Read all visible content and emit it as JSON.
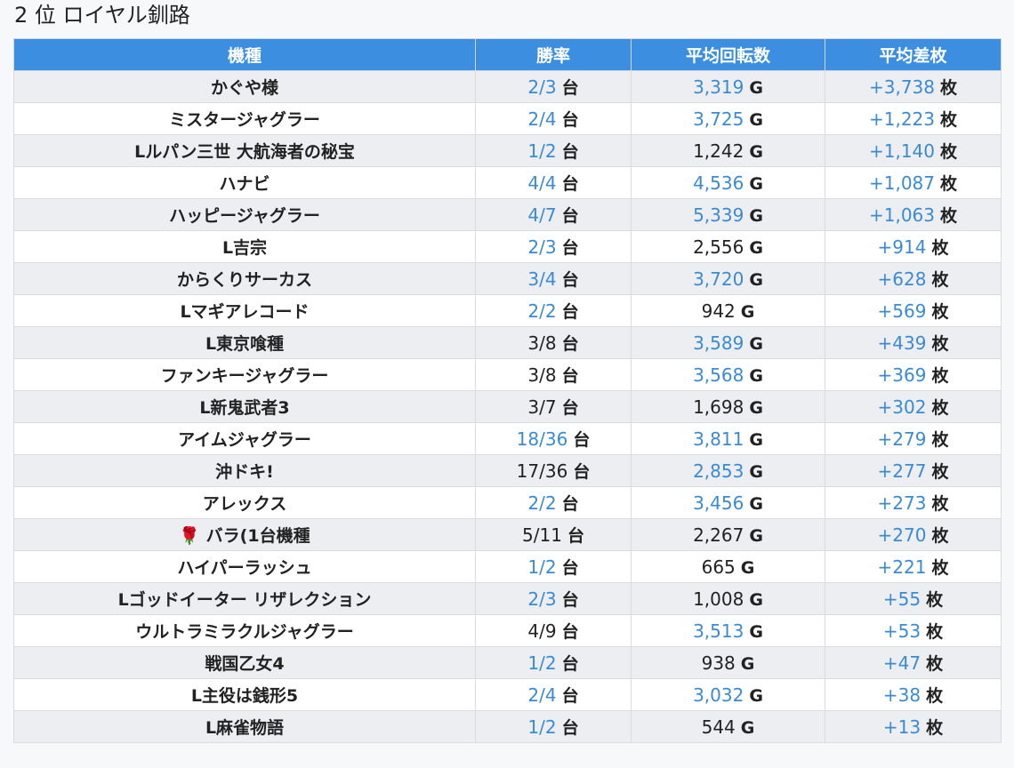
{
  "title": "2 位 ロイヤル釧路",
  "table": {
    "headers": [
      "機種",
      "勝率",
      "平均回転数",
      "平均差枚"
    ],
    "rows": [
      {
        "name": "かぐや様",
        "win": "2/3",
        "win_blue": true,
        "unit_win": "台",
        "spins": "3,319",
        "spins_blue": true,
        "unit_spins": "G",
        "diff": "+3,738",
        "diff_blue": true,
        "unit_diff": "枚"
      },
      {
        "name": "ミスタージャグラー",
        "win": "2/4",
        "win_blue": true,
        "unit_win": "台",
        "spins": "3,725",
        "spins_blue": true,
        "unit_spins": "G",
        "diff": "+1,223",
        "diff_blue": true,
        "unit_diff": "枚"
      },
      {
        "name": "Lルパン三世 大航海者の秘宝",
        "win": "1/2",
        "win_blue": true,
        "unit_win": "台",
        "spins": "1,242",
        "spins_blue": false,
        "unit_spins": "G",
        "diff": "+1,140",
        "diff_blue": true,
        "unit_diff": "枚"
      },
      {
        "name": "ハナビ",
        "win": "4/4",
        "win_blue": true,
        "unit_win": "台",
        "spins": "4,536",
        "spins_blue": true,
        "unit_spins": "G",
        "diff": "+1,087",
        "diff_blue": true,
        "unit_diff": "枚"
      },
      {
        "name": "ハッピージャグラー",
        "win": "4/7",
        "win_blue": true,
        "unit_win": "台",
        "spins": "5,339",
        "spins_blue": true,
        "unit_spins": "G",
        "diff": "+1,063",
        "diff_blue": true,
        "unit_diff": "枚"
      },
      {
        "name": "L吉宗",
        "win": "2/3",
        "win_blue": true,
        "unit_win": "台",
        "spins": "2,556",
        "spins_blue": false,
        "unit_spins": "G",
        "diff": "+914",
        "diff_blue": true,
        "unit_diff": "枚"
      },
      {
        "name": "からくりサーカス",
        "win": "3/4",
        "win_blue": true,
        "unit_win": "台",
        "spins": "3,720",
        "spins_blue": true,
        "unit_spins": "G",
        "diff": "+628",
        "diff_blue": true,
        "unit_diff": "枚"
      },
      {
        "name": "Lマギアレコード",
        "win": "2/2",
        "win_blue": true,
        "unit_win": "台",
        "spins": "942",
        "spins_blue": false,
        "unit_spins": "G",
        "diff": "+569",
        "diff_blue": true,
        "unit_diff": "枚"
      },
      {
        "name": "L東京喰種",
        "win": "3/8",
        "win_blue": false,
        "unit_win": "台",
        "spins": "3,589",
        "spins_blue": true,
        "unit_spins": "G",
        "diff": "+439",
        "diff_blue": true,
        "unit_diff": "枚"
      },
      {
        "name": "ファンキージャグラー",
        "win": "3/8",
        "win_blue": false,
        "unit_win": "台",
        "spins": "3,568",
        "spins_blue": true,
        "unit_spins": "G",
        "diff": "+369",
        "diff_blue": true,
        "unit_diff": "枚"
      },
      {
        "name": "L新鬼武者3",
        "win": "3/7",
        "win_blue": false,
        "unit_win": "台",
        "spins": "1,698",
        "spins_blue": false,
        "unit_spins": "G",
        "diff": "+302",
        "diff_blue": true,
        "unit_diff": "枚"
      },
      {
        "name": "アイムジャグラー",
        "win": "18/36",
        "win_blue": true,
        "unit_win": "台",
        "spins": "3,811",
        "spins_blue": true,
        "unit_spins": "G",
        "diff": "+279",
        "diff_blue": true,
        "unit_diff": "枚"
      },
      {
        "name": "沖ドキ!",
        "win": "17/36",
        "win_blue": false,
        "unit_win": "台",
        "spins": "2,853",
        "spins_blue": true,
        "unit_spins": "G",
        "diff": "+277",
        "diff_blue": true,
        "unit_diff": "枚"
      },
      {
        "name": "アレックス",
        "win": "2/2",
        "win_blue": true,
        "unit_win": "台",
        "spins": "3,456",
        "spins_blue": true,
        "unit_spins": "G",
        "diff": "+273",
        "diff_blue": true,
        "unit_diff": "枚"
      },
      {
        "name": "🌹 バラ(1台機種",
        "win": "5/11",
        "win_blue": false,
        "unit_win": "台",
        "spins": "2,267",
        "spins_blue": false,
        "unit_spins": "G",
        "diff": "+270",
        "diff_blue": true,
        "unit_diff": "枚"
      },
      {
        "name": "ハイパーラッシュ",
        "win": "1/2",
        "win_blue": true,
        "unit_win": "台",
        "spins": "665",
        "spins_blue": false,
        "unit_spins": "G",
        "diff": "+221",
        "diff_blue": true,
        "unit_diff": "枚"
      },
      {
        "name": "Lゴッドイーター リザレクション",
        "win": "2/3",
        "win_blue": true,
        "unit_win": "台",
        "spins": "1,008",
        "spins_blue": false,
        "unit_spins": "G",
        "diff": "+55",
        "diff_blue": true,
        "unit_diff": "枚"
      },
      {
        "name": "ウルトラミラクルジャグラー",
        "win": "4/9",
        "win_blue": false,
        "unit_win": "台",
        "spins": "3,513",
        "spins_blue": true,
        "unit_spins": "G",
        "diff": "+53",
        "diff_blue": true,
        "unit_diff": "枚"
      },
      {
        "name": "戦国乙女4",
        "win": "1/2",
        "win_blue": true,
        "unit_win": "台",
        "spins": "938",
        "spins_blue": false,
        "unit_spins": "G",
        "diff": "+47",
        "diff_blue": true,
        "unit_diff": "枚"
      },
      {
        "name": "L主役は銭形5",
        "win": "2/4",
        "win_blue": true,
        "unit_win": "台",
        "spins": "3,032",
        "spins_blue": true,
        "unit_spins": "G",
        "diff": "+38",
        "diff_blue": true,
        "unit_diff": "枚"
      },
      {
        "name": "L麻雀物語",
        "win": "1/2",
        "win_blue": true,
        "unit_win": "台",
        "spins": "544",
        "spins_blue": false,
        "unit_spins": "G",
        "diff": "+13",
        "diff_blue": true,
        "unit_diff": "枚"
      }
    ]
  },
  "colors": {
    "header_bg": "#3b8ee0",
    "value_blue": "#3a8bd6",
    "row_alt": "#eceef1"
  }
}
